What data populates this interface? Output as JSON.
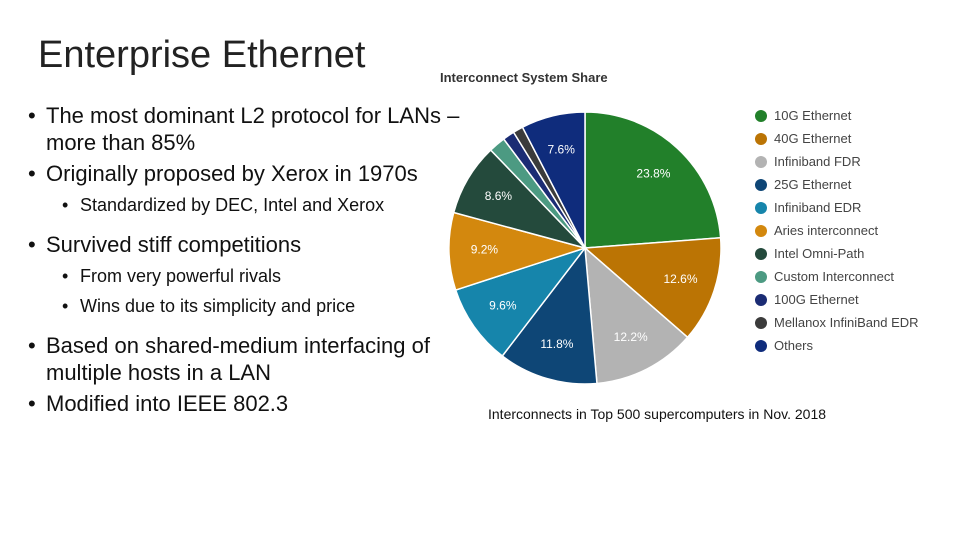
{
  "slide": {
    "title": "Enterprise Ethernet",
    "bullets": [
      {
        "text": "The most dominant L2 protocol for LANs – more than 85%"
      },
      {
        "text": "Originally proposed by Xerox in 1970s",
        "sub": [
          "Standardized by DEC, Intel and Xerox"
        ]
      },
      {
        "text": "Survived stiff competitions",
        "sub": [
          "From very powerful rivals",
          "Wins due to its simplicity and price"
        ]
      },
      {
        "text": "Based on shared-medium interfacing of multiple hosts in a LAN"
      },
      {
        "text": "Modified into IEEE 802.3"
      }
    ],
    "caption": "Interconnects in Top 500 supercomputers in Nov. 2018"
  },
  "chart_data": {
    "type": "pie",
    "title": "Interconnect System Share",
    "categories": [
      "10G Ethernet",
      "40G Ethernet",
      "Infiniband FDR",
      "25G Ethernet",
      "Infiniband EDR",
      "Aries interconnect",
      "Intel Omni-Path",
      "Custom Interconnect",
      "100G Ethernet",
      "Mellanox InfiniBand EDR",
      "Others"
    ],
    "values": [
      23.8,
      12.6,
      12.2,
      11.8,
      9.6,
      9.2,
      8.6,
      2.0,
      1.4,
      1.2,
      7.6
    ],
    "value_labels": [
      "23.8%",
      "12.6%",
      "12.2%",
      "11.8%",
      "9.6%",
      "9.2%",
      "8.6%",
      null,
      null,
      null,
      "7.6%"
    ],
    "colors": [
      "#22802a",
      "#bb7404",
      "#b3b3b3",
      "#0e4676",
      "#1685ab",
      "#d3880e",
      "#244a3c",
      "#4c9a82",
      "#1b2c74",
      "#3b3b3b",
      "#0f2c7c"
    ],
    "legend": "right"
  }
}
